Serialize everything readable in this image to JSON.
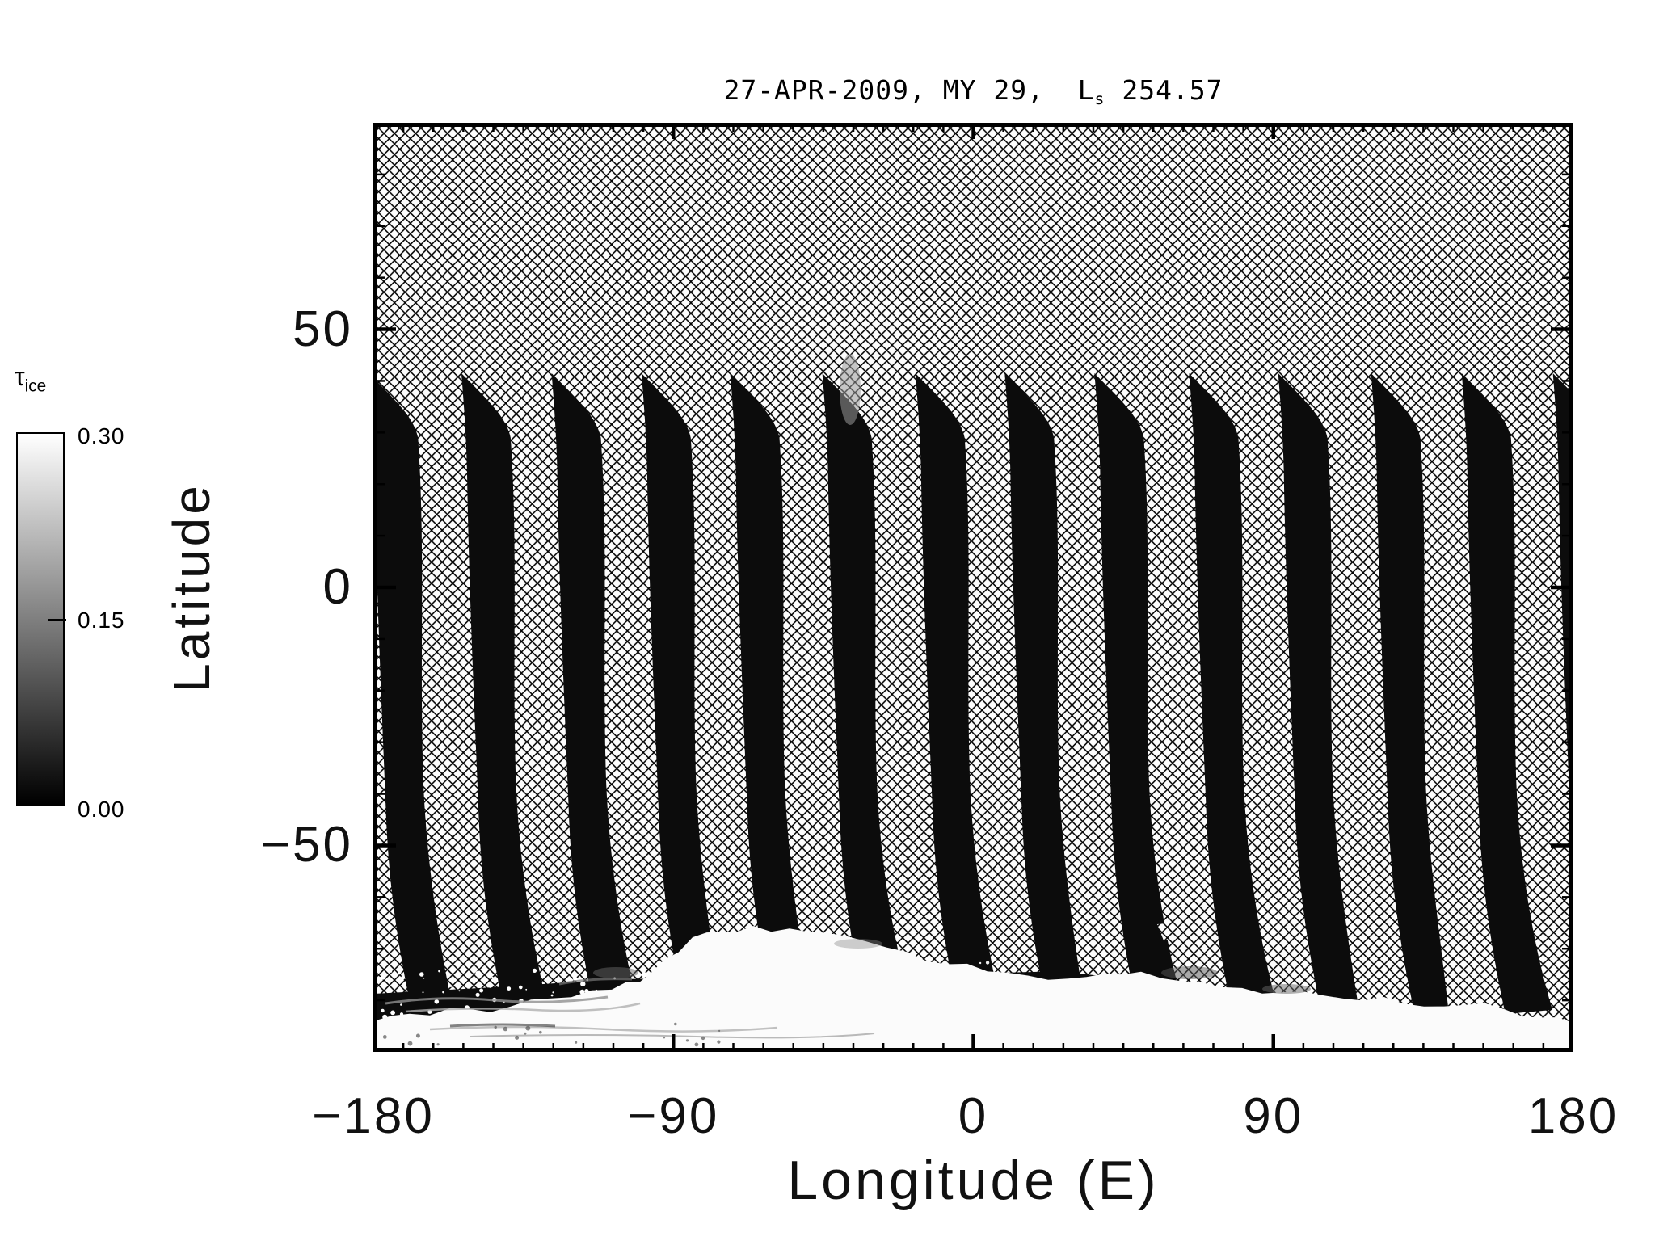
{
  "title": {
    "prefix": "27-APR-2009, MY 29,  L",
    "sub": "s",
    "suffix": " 254.57"
  },
  "colorbar": {
    "symbol": "τ",
    "symbol_subscript": "ice",
    "max_label": "0.30",
    "mid_label": "0.15",
    "min_label": "0.00",
    "top_color": "#ffffff",
    "bottom_color": "#000000"
  },
  "axes": {
    "xlabel": "Longitude (E)",
    "ylabel": "Latitude",
    "x_tick_labels": [
      "−180",
      "−90",
      "0",
      "90",
      "180"
    ],
    "y_tick_labels": [
      "50",
      "0",
      "−50"
    ]
  },
  "chart_data": {
    "type": "heatmap",
    "title": "27-APR-2009, MY 29, Ls 254.57",
    "date": "27-APR-2009",
    "mars_year": 29,
    "Ls": 254.57,
    "xlabel": "Longitude (E)",
    "ylabel": "Latitude",
    "xlim": [
      -180,
      180
    ],
    "ylim": [
      -90,
      90
    ],
    "x_major_ticks": [
      -180,
      -90,
      0,
      90,
      180
    ],
    "x_minor_interval_deg": 9,
    "y_major_ticks": [
      50,
      0,
      -50
    ],
    "y_minor_interval_deg": 10,
    "grid": false,
    "colorbar": {
      "variable": "tau_ice",
      "min": 0.0,
      "mid": 0.15,
      "max": 0.3,
      "colormap": "grayscale, black (0.00) to white (0.30)"
    },
    "background": "cross-hatched no-data region",
    "swaths": {
      "count": 14,
      "first_tip_longitude_deg": -181.5,
      "longitude_spacing_deg": 27.3,
      "tip_latitude_deg": 41.5,
      "body_width_deg": 11,
      "value": "tau_ice ~ 0 (black orbit tracks)",
      "shape": "pointed tip at north end, near-vertical body drifting slightly east, foot curving east below -55 latitude"
    },
    "polar_cap": {
      "value": "tau_ice ~ 0.30 (bright white)",
      "edge_latitude_range": [
        -78,
        -66
      ],
      "peak_longitude_deg": [
        -65,
        -25
      ],
      "description": "irregular bright south polar ice region with speckled gray boundary"
    }
  }
}
